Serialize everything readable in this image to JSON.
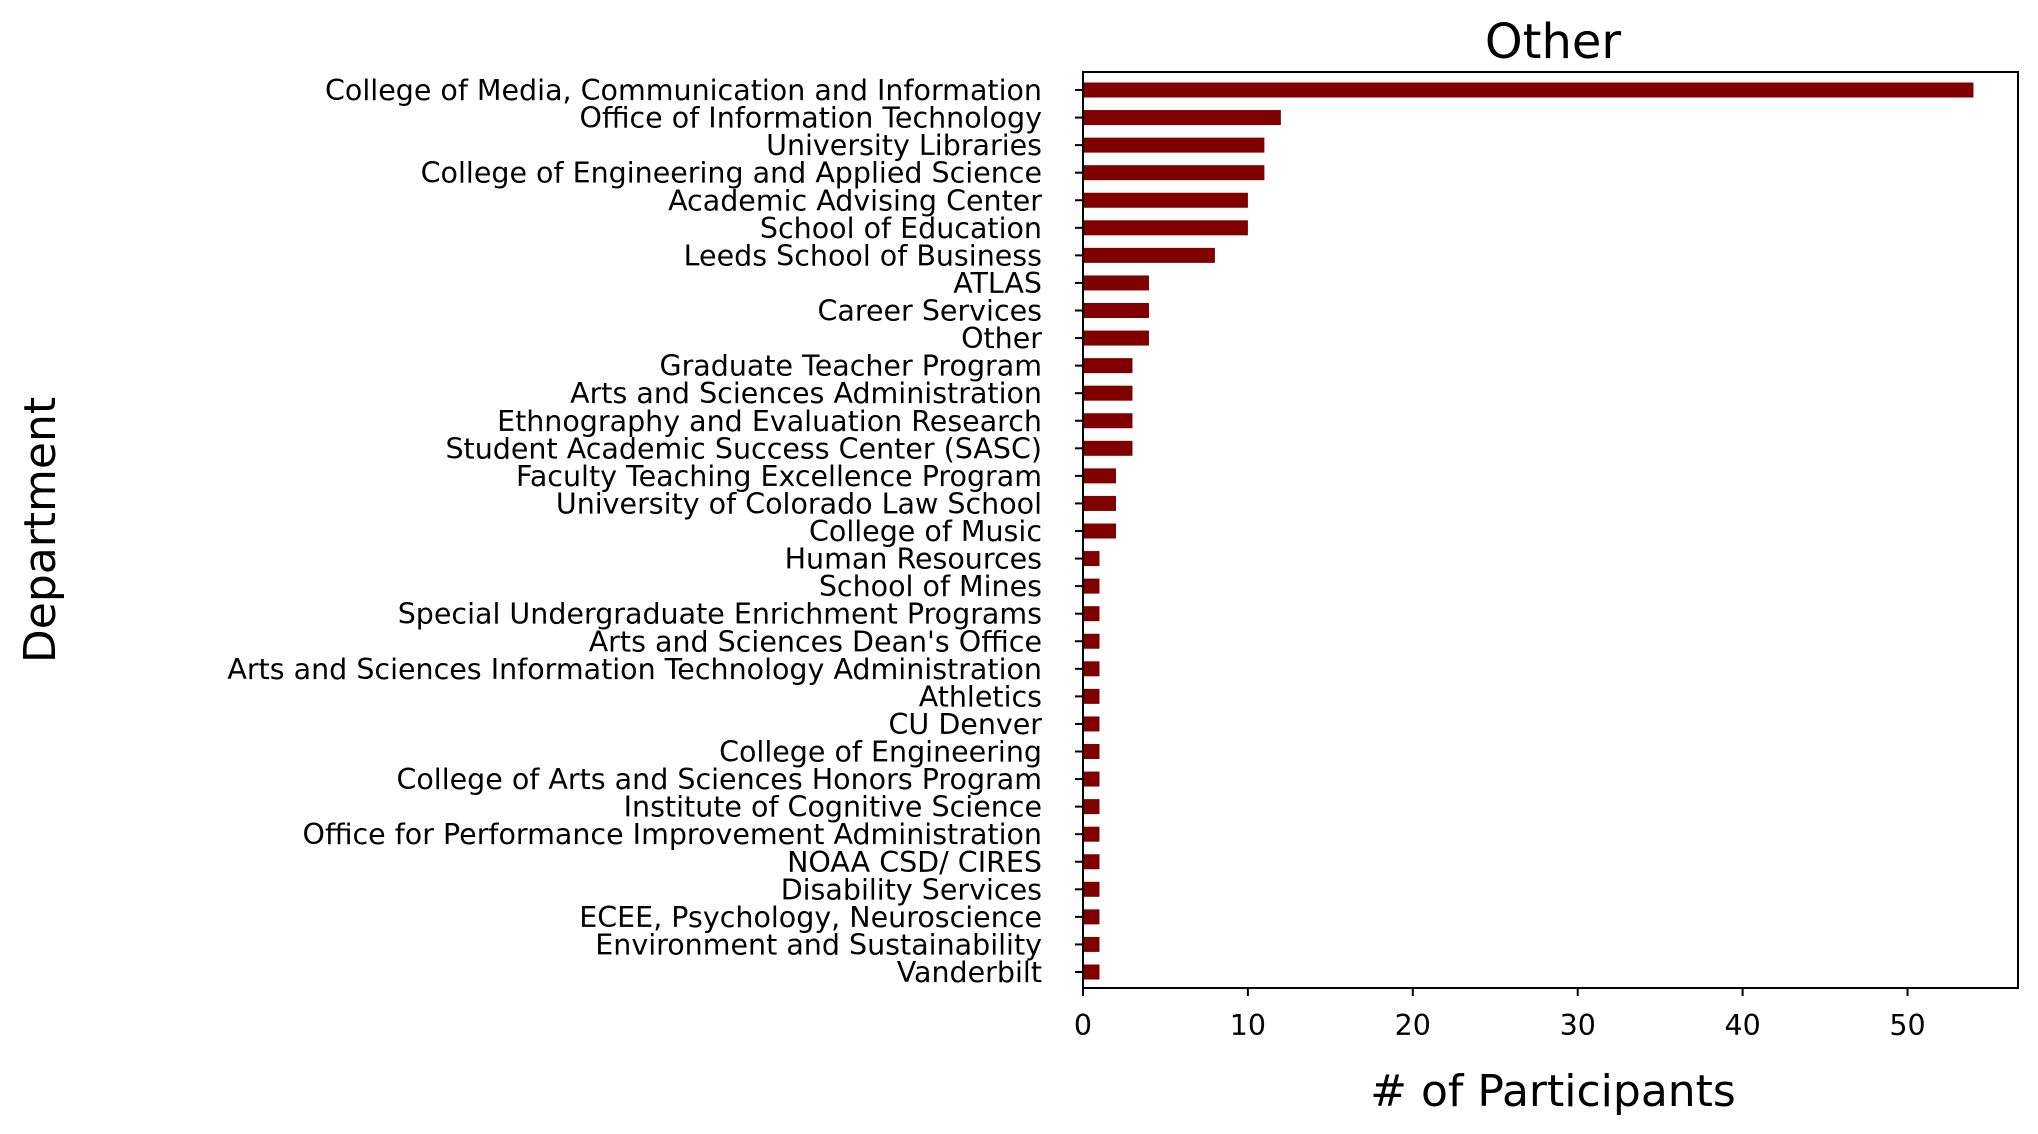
{
  "chart_data": {
    "type": "bar",
    "orientation": "horizontal",
    "title": "Other",
    "xlabel": "# of Participants",
    "ylabel": "Department",
    "xlim": [
      0,
      56.7
    ],
    "xticks": [
      0,
      10,
      20,
      30,
      40,
      50
    ],
    "grid": false,
    "legend": "none",
    "bar_color": "#800000",
    "categories": [
      "College of Media, Communication and Information",
      "Office of Information Technology",
      "University Libraries",
      "College of Engineering and Applied Science",
      "Academic Advising Center",
      "School of Education",
      "Leeds School of Business",
      "ATLAS",
      "Career Services",
      "Other",
      "Graduate Teacher Program",
      "Arts and Sciences Administration",
      "Ethnography and Evaluation Research",
      "Student Academic Success Center (SASC)",
      "Faculty Teaching Excellence Program",
      "University of Colorado Law School",
      "College of Music",
      "Human Resources",
      "School of Mines",
      "Special Undergraduate Enrichment Programs",
      "Arts and Sciences Dean's Office",
      "Arts and Sciences Information Technology Administration",
      "Athletics",
      "CU Denver",
      "College of Engineering",
      "College of Arts and Sciences Honors Program",
      "Institute of Cognitive Science",
      "Office for Performance Improvement Administration",
      "NOAA CSD/ CIRES",
      "Disability Services",
      "ECEE, Psychology, Neuroscience",
      "Environment and Sustainability",
      "Vanderbilt"
    ],
    "values": [
      54,
      12,
      11,
      11,
      10,
      10,
      8,
      4,
      4,
      4,
      3,
      3,
      3,
      3,
      2,
      2,
      2,
      1,
      1,
      1,
      1,
      1,
      1,
      1,
      1,
      1,
      1,
      1,
      1,
      1,
      1,
      1,
      1
    ]
  }
}
